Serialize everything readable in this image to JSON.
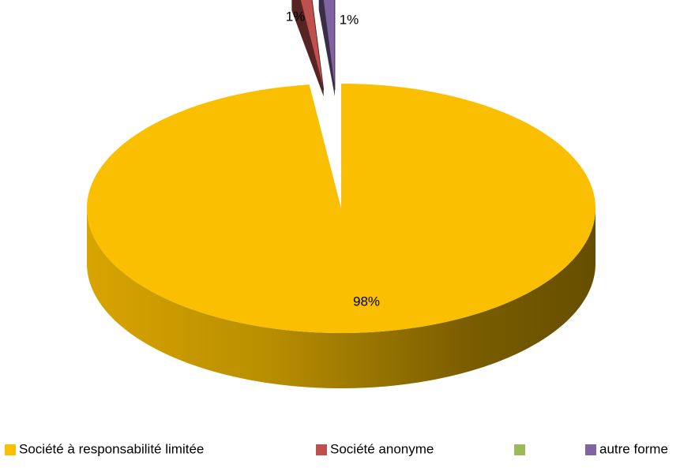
{
  "chart_data": {
    "type": "pie",
    "title": "",
    "variant": "3d-exploded",
    "categories": [
      "Société à responsabilité limitée",
      "Société anonyme",
      "",
      "autre forme"
    ],
    "values": [
      98,
      1,
      0,
      1
    ],
    "data_labels": [
      "98%",
      "1%",
      "",
      "1%"
    ],
    "colors": [
      "#f9bf00",
      "#c0504d",
      "#9bbb59",
      "#8064a2"
    ],
    "legend_position": "bottom"
  }
}
